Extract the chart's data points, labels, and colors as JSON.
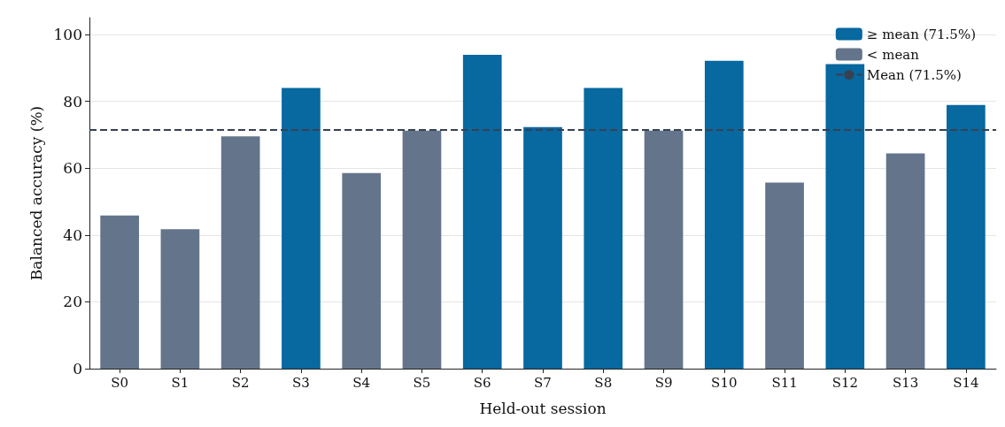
{
  "chart_data": {
    "type": "bar",
    "xlabel": "Held-out session",
    "ylabel": "Balanced accuracy (%)",
    "categories": [
      "S0",
      "S1",
      "S2",
      "S3",
      "S4",
      "S5",
      "S6",
      "S7",
      "S8",
      "S9",
      "S10",
      "S11",
      "S12",
      "S13",
      "S14"
    ],
    "series": [
      {
        "name": "≥ mean (71.5%)",
        "color": "#0868a0",
        "values": [
          null,
          null,
          null,
          84.0,
          null,
          null,
          93.9,
          72.3,
          84.0,
          null,
          92.1,
          null,
          91.1,
          null,
          78.9
        ]
      },
      {
        "name": "< mean",
        "color": "#64748b",
        "values": [
          45.8,
          41.7,
          69.5,
          null,
          58.5,
          71.2,
          null,
          null,
          null,
          71.2,
          null,
          55.7,
          null,
          64.4,
          null
        ]
      }
    ],
    "ref_lines": [
      {
        "axis": "y",
        "value": 71.5,
        "label": "Mean (71.5%)",
        "color": "#374151",
        "line_style": "dashed"
      }
    ],
    "ylim": [
      0,
      105
    ],
    "yticks": [
      0,
      20,
      40,
      60,
      80,
      100
    ],
    "grid": "y",
    "legend": "top right"
  }
}
